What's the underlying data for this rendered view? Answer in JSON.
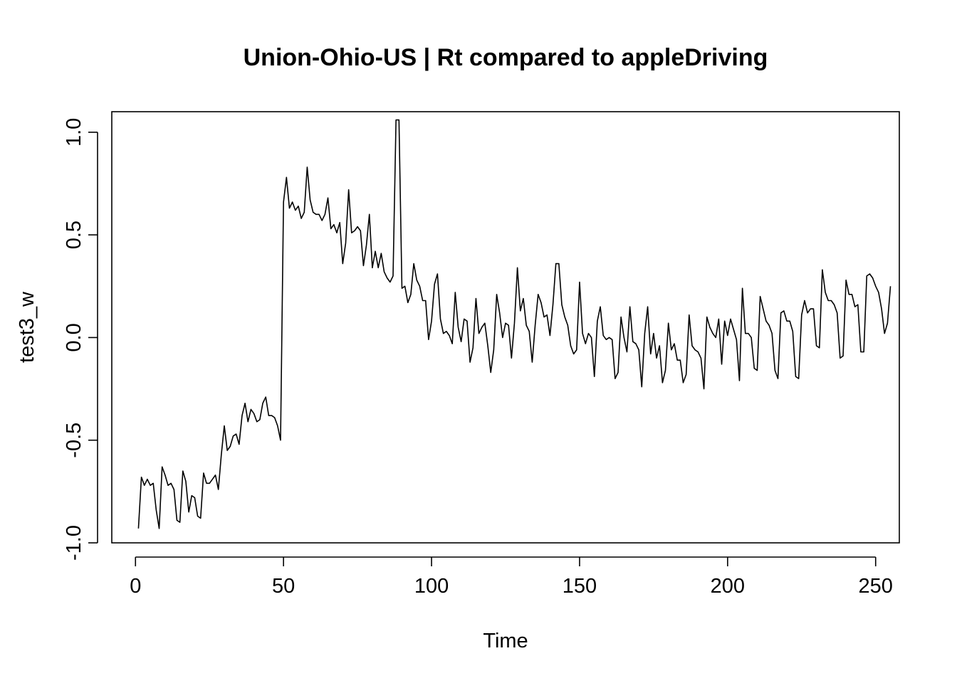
{
  "chart_data": {
    "type": "line",
    "title": "Union-Ohio-US | Rt compared to appleDriving",
    "xlabel": "Time",
    "ylabel": "test3_w",
    "xlim": [
      -8,
      258
    ],
    "ylim": [
      -1.0,
      1.1
    ],
    "x_ticks": [
      0,
      50,
      100,
      150,
      200,
      250
    ],
    "x_tick_labels": [
      "0",
      "50",
      "100",
      "150",
      "200",
      "250"
    ],
    "y_ticks": [
      -1.0,
      -0.5,
      0.0,
      0.5,
      1.0
    ],
    "y_tick_labels": [
      "-1.0",
      "-0.5",
      "0.0",
      "0.5",
      "1.0"
    ],
    "grid": false,
    "legend": "none",
    "line_color": "#000000",
    "series": [
      {
        "x_start": 1,
        "x_step": 1,
        "values": [
          -0.93,
          -0.68,
          -0.72,
          -0.69,
          -0.72,
          -0.71,
          -0.84,
          -0.93,
          -0.63,
          -0.67,
          -0.72,
          -0.71,
          -0.74,
          -0.89,
          -0.9,
          -0.65,
          -0.7,
          -0.85,
          -0.77,
          -0.78,
          -0.87,
          -0.88,
          -0.66,
          -0.71,
          -0.71,
          -0.69,
          -0.67,
          -0.74,
          -0.57,
          -0.43,
          -0.55,
          -0.53,
          -0.48,
          -0.47,
          -0.52,
          -0.38,
          -0.32,
          -0.41,
          -0.35,
          -0.37,
          -0.41,
          -0.4,
          -0.32,
          -0.29,
          -0.38,
          -0.38,
          -0.39,
          -0.43,
          -0.5,
          0.66,
          0.78,
          0.63,
          0.66,
          0.62,
          0.64,
          0.58,
          0.61,
          0.83,
          0.67,
          0.61,
          0.6,
          0.6,
          0.57,
          0.6,
          0.68,
          0.53,
          0.55,
          0.51,
          0.56,
          0.36,
          0.46,
          0.72,
          0.51,
          0.52,
          0.54,
          0.52,
          0.35,
          0.45,
          0.6,
          0.34,
          0.42,
          0.34,
          0.41,
          0.32,
          0.29,
          0.27,
          0.3,
          1.06,
          1.06,
          0.24,
          0.25,
          0.17,
          0.21,
          0.36,
          0.28,
          0.25,
          0.18,
          0.18,
          -0.01,
          0.08,
          0.26,
          0.31,
          0.09,
          0.02,
          0.03,
          0.01,
          -0.03,
          0.22,
          0.05,
          -0.02,
          0.09,
          0.08,
          -0.12,
          -0.05,
          0.19,
          0.02,
          0.05,
          0.07,
          -0.04,
          -0.17,
          -0.06,
          0.21,
          0.12,
          0.0,
          0.07,
          0.06,
          -0.1,
          0.07,
          0.34,
          0.13,
          0.19,
          0.06,
          0.03,
          -0.12,
          0.06,
          0.21,
          0.17,
          0.1,
          0.11,
          0.01,
          0.16,
          0.36,
          0.36,
          0.16,
          0.1,
          0.06,
          -0.04,
          -0.08,
          -0.06,
          0.27,
          0.02,
          -0.03,
          0.02,
          0.0,
          -0.19,
          0.08,
          0.15,
          0.01,
          -0.01,
          0.0,
          -0.01,
          -0.2,
          -0.17,
          0.1,
          0.0,
          -0.07,
          0.15,
          -0.02,
          -0.03,
          -0.06,
          -0.24,
          0.02,
          0.15,
          -0.08,
          0.02,
          -0.1,
          -0.04,
          -0.22,
          -0.16,
          0.07,
          -0.06,
          -0.03,
          -0.11,
          -0.11,
          -0.22,
          -0.18,
          0.11,
          -0.04,
          -0.06,
          -0.07,
          -0.1,
          -0.25,
          0.1,
          0.05,
          0.02,
          0.0,
          0.09,
          -0.13,
          0.08,
          0.01,
          0.09,
          0.04,
          -0.01,
          -0.21,
          0.24,
          0.02,
          0.02,
          0.0,
          -0.15,
          -0.16,
          0.2,
          0.14,
          0.08,
          0.06,
          0.02,
          -0.16,
          -0.2,
          0.12,
          0.13,
          0.08,
          0.08,
          0.03,
          -0.19,
          -0.2,
          0.11,
          0.18,
          0.12,
          0.14,
          0.14,
          -0.04,
          -0.05,
          0.33,
          0.22,
          0.18,
          0.18,
          0.16,
          0.12,
          -0.1,
          -0.09,
          0.28,
          0.21,
          0.21,
          0.15,
          0.16,
          -0.07,
          -0.07,
          0.3,
          0.31,
          0.29,
          0.25,
          0.22,
          0.14,
          0.02,
          0.07,
          0.25
        ]
      }
    ]
  }
}
